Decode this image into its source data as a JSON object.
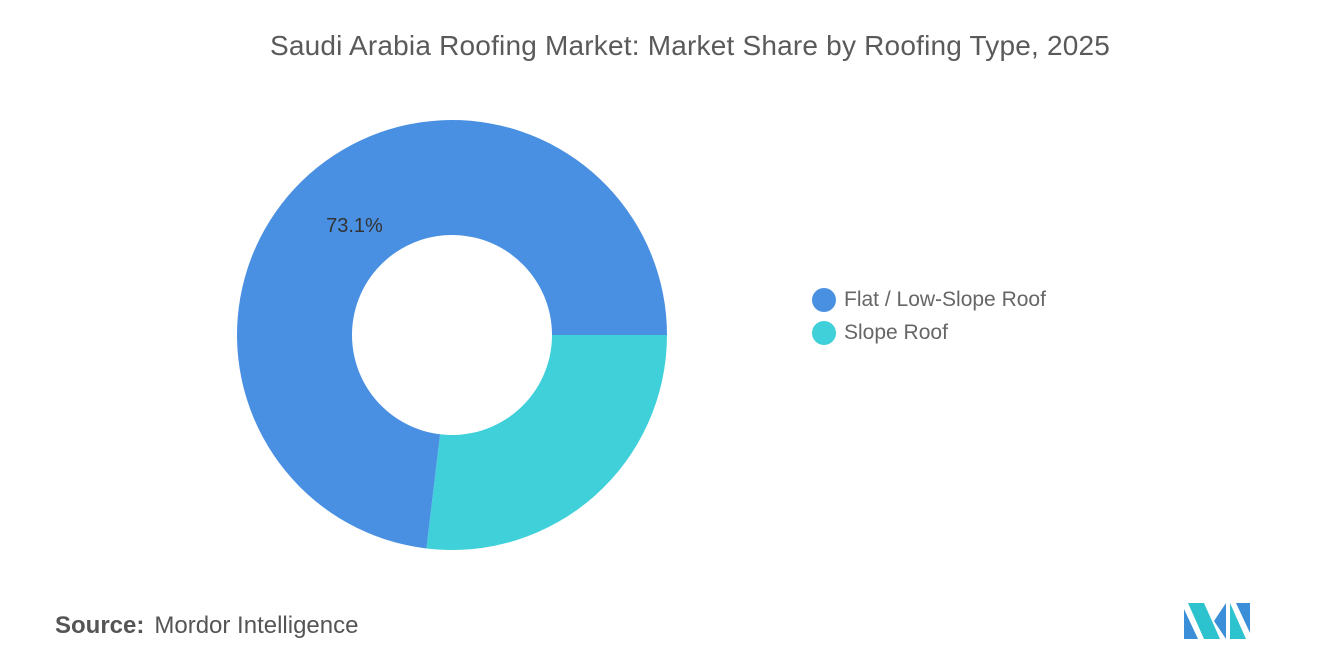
{
  "title": "Saudi Arabia Roofing Market: Market Share by Roofing Type, 2025",
  "source": {
    "label": "Source:",
    "value": "Mordor Intelligence"
  },
  "logo_name": "mordor-intelligence-logo",
  "colors": {
    "flat": "#4a90e2",
    "slope": "#3fd0da",
    "text": "#5a5a5a"
  },
  "chart_data": {
    "type": "pie",
    "style": "donut",
    "title": "Saudi Arabia Roofing Market: Market Share by Roofing Type, 2025",
    "legend_position": "right",
    "series": [
      {
        "name": "Flat / Low-Slope Roof",
        "value": 73.1,
        "label": "73.1%",
        "color": "#4a90e2"
      },
      {
        "name": "Slope Roof",
        "value": 26.9,
        "label": "",
        "color": "#3fd0da"
      }
    ]
  }
}
